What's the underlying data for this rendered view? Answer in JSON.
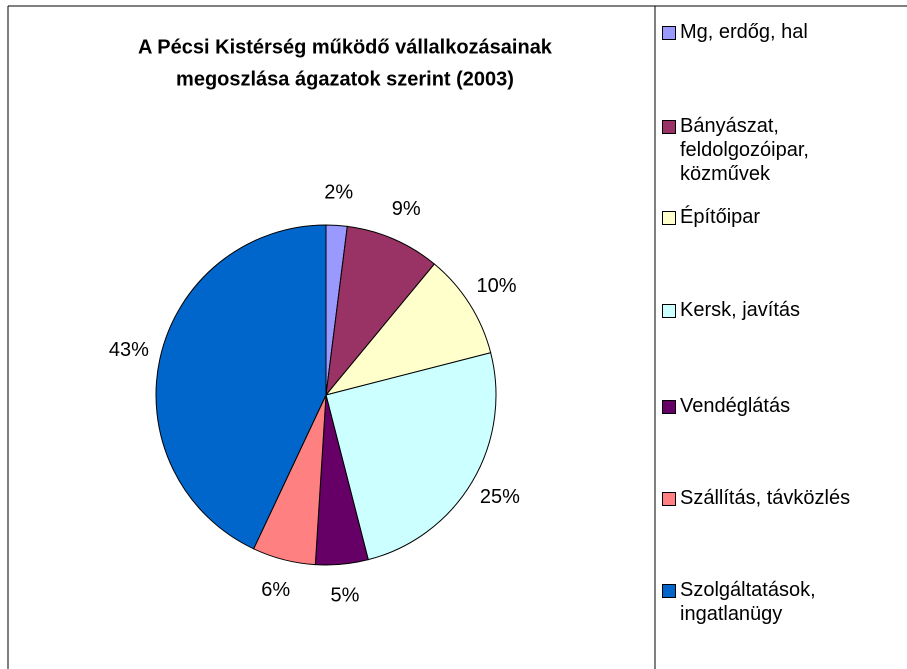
{
  "chart_data": {
    "type": "pie",
    "title": "A Pécsi Kistérség működő vállalkozásainak",
    "subtitle": "megoszlása ágazatok szerint (2003)",
    "categories": [
      "Mg, erdőg, hal",
      "Bányászat, feldolgozóipar, közművek",
      "Építőipar",
      "Kersk, javítás",
      "Vendéglátás",
      "Szállítás, távközlés",
      "Szolgáltatások, ingatlanügy"
    ],
    "values": [
      2,
      9,
      10,
      25,
      5,
      6,
      43
    ],
    "value_labels": [
      "2%",
      "9%",
      "10%",
      "25%",
      "5%",
      "6%",
      "43%"
    ],
    "colors": [
      "#9999ff",
      "#993366",
      "#ffffcc",
      "#ccffff",
      "#660066",
      "#ff8080",
      "#0066cc"
    ]
  }
}
